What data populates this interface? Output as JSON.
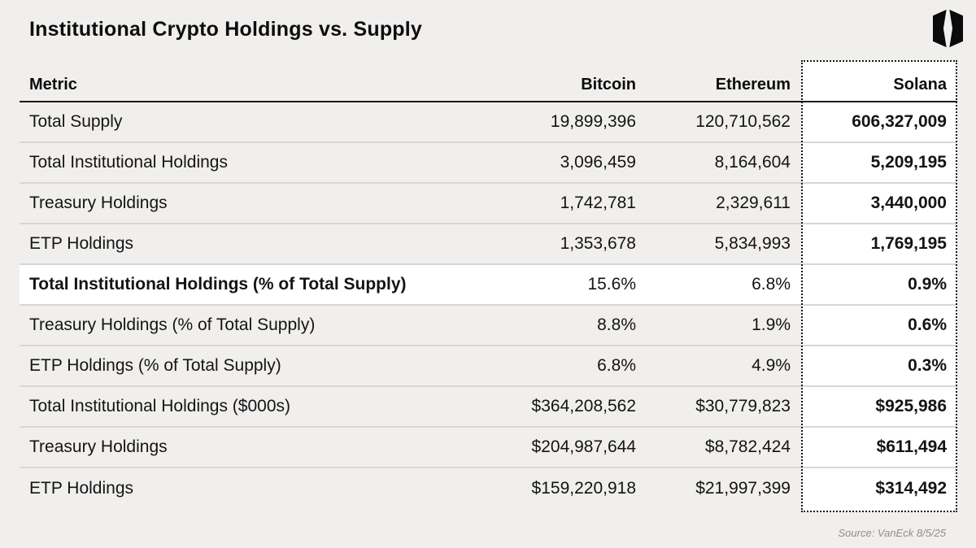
{
  "title": "Institutional Crypto Holdings vs. Supply",
  "source": "Source: VanEck 8/5/25",
  "logo": {
    "name": "vaneck-mark"
  },
  "colors": {
    "background": "#f0efed",
    "text": "#141414",
    "header_rule": "#1c1c1c",
    "row_separator": "#d8d7d3",
    "highlight_fill": "#ffffff",
    "dotted_border": "#161616",
    "source_text": "#8f8f8c"
  },
  "chart_data": {
    "type": "table",
    "title": "Institutional Crypto Holdings vs. Supply",
    "columns": [
      "Metric",
      "Bitcoin",
      "Ethereum",
      "Solana"
    ],
    "highlighted_column": "Solana",
    "highlighted_row": "Total Institutional Holdings (% of Total Supply)",
    "rows": [
      {
        "metric": "Total Supply",
        "bitcoin": "19,899,396",
        "ethereum": "120,710,562",
        "solana": "606,327,009",
        "bold": false
      },
      {
        "metric": "Total Institutional Holdings",
        "bitcoin": "3,096,459",
        "ethereum": "8,164,604",
        "solana": "5,209,195",
        "bold": false
      },
      {
        "metric": "Treasury Holdings",
        "bitcoin": "1,742,781",
        "ethereum": "2,329,611",
        "solana": "3,440,000",
        "bold": false
      },
      {
        "metric": "ETP Holdings",
        "bitcoin": "1,353,678",
        "ethereum": "5,834,993",
        "solana": "1,769,195",
        "bold": false
      },
      {
        "metric": "Total Institutional Holdings (% of Total Supply)",
        "bitcoin": "15.6%",
        "ethereum": "6.8%",
        "solana": "0.9%",
        "bold": true
      },
      {
        "metric": "Treasury Holdings (% of Total Supply)",
        "bitcoin": "8.8%",
        "ethereum": "1.9%",
        "solana": "0.6%",
        "bold": false
      },
      {
        "metric": "ETP Holdings (% of Total Supply)",
        "bitcoin": "6.8%",
        "ethereum": "4.9%",
        "solana": "0.3%",
        "bold": false
      },
      {
        "metric": "Total Institutional Holdings ($000s)",
        "bitcoin": "$364,208,562",
        "ethereum": "$30,779,823",
        "solana": "$925,986",
        "bold": false
      },
      {
        "metric": "Treasury Holdings",
        "bitcoin": "$204,987,644",
        "ethereum": "$8,782,424",
        "solana": "$611,494",
        "bold": false
      },
      {
        "metric": "ETP Holdings",
        "bitcoin": "$159,220,918",
        "ethereum": "$21,997,399",
        "solana": "$314,492",
        "bold": false
      }
    ]
  }
}
